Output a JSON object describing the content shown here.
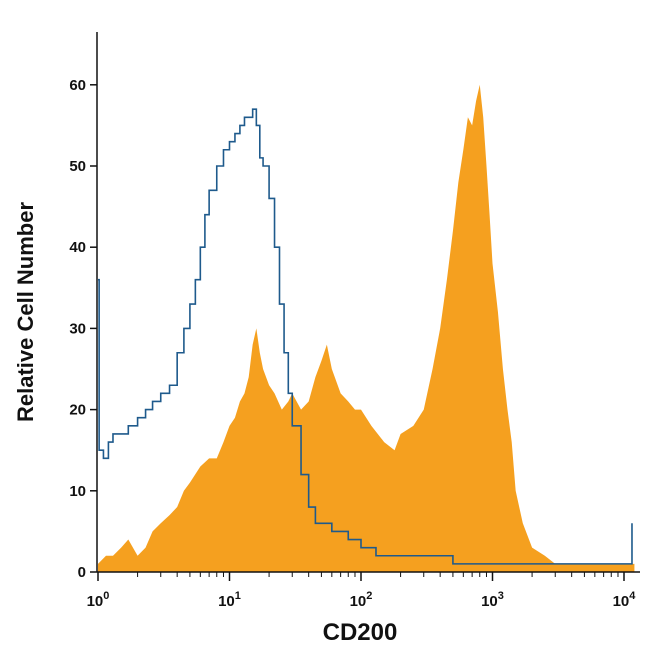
{
  "chart_data": {
    "type": "area",
    "xlabel": "CD200",
    "ylabel": "Relative Cell Number",
    "x_scale": "log",
    "xlim": [
      1,
      12000
    ],
    "ylim": [
      0,
      65
    ],
    "grid": false,
    "x_ticks": [
      {
        "value": 1,
        "base": "10",
        "exp": "0"
      },
      {
        "value": 10,
        "base": "10",
        "exp": "1"
      },
      {
        "value": 100,
        "base": "10",
        "exp": "2"
      },
      {
        "value": 1000,
        "base": "10",
        "exp": "3"
      },
      {
        "value": 10000,
        "base": "10",
        "exp": "4"
      }
    ],
    "y_ticks": [
      0,
      10,
      20,
      30,
      40,
      50,
      60
    ],
    "series": [
      {
        "style": "filled",
        "color": "#f5a01f",
        "points": [
          [
            1,
            1
          ],
          [
            1.15,
            2
          ],
          [
            1.3,
            2
          ],
          [
            1.5,
            3
          ],
          [
            1.7,
            4
          ],
          [
            2,
            2
          ],
          [
            2.3,
            3
          ],
          [
            2.6,
            5
          ],
          [
            3,
            6
          ],
          [
            3.5,
            7
          ],
          [
            4,
            8
          ],
          [
            4.5,
            10
          ],
          [
            5,
            11
          ],
          [
            6,
            13
          ],
          [
            7,
            14
          ],
          [
            8,
            14
          ],
          [
            9,
            16
          ],
          [
            10,
            18
          ],
          [
            11,
            19
          ],
          [
            12,
            21
          ],
          [
            13,
            22
          ],
          [
            14,
            24
          ],
          [
            15,
            28
          ],
          [
            16,
            30
          ],
          [
            17,
            27
          ],
          [
            18,
            25
          ],
          [
            20,
            23
          ],
          [
            22,
            22
          ],
          [
            25,
            20
          ],
          [
            28,
            21
          ],
          [
            30,
            22
          ],
          [
            35,
            20
          ],
          [
            40,
            21
          ],
          [
            45,
            24
          ],
          [
            50,
            26
          ],
          [
            55,
            28
          ],
          [
            60,
            25
          ],
          [
            70,
            22
          ],
          [
            80,
            21
          ],
          [
            90,
            20
          ],
          [
            100,
            20
          ],
          [
            120,
            18
          ],
          [
            150,
            16
          ],
          [
            180,
            15
          ],
          [
            200,
            17
          ],
          [
            250,
            18
          ],
          [
            300,
            20
          ],
          [
            350,
            25
          ],
          [
            400,
            30
          ],
          [
            450,
            36
          ],
          [
            500,
            42
          ],
          [
            550,
            48
          ],
          [
            600,
            52
          ],
          [
            650,
            56
          ],
          [
            700,
            55
          ],
          [
            750,
            58
          ],
          [
            800,
            60
          ],
          [
            850,
            56
          ],
          [
            900,
            50
          ],
          [
            950,
            44
          ],
          [
            1000,
            38
          ],
          [
            1100,
            32
          ],
          [
            1200,
            25
          ],
          [
            1300,
            20
          ],
          [
            1400,
            16
          ],
          [
            1500,
            10
          ],
          [
            1700,
            6
          ],
          [
            2000,
            3
          ],
          [
            2500,
            2
          ],
          [
            3000,
            1
          ],
          [
            4000,
            1
          ],
          [
            6000,
            1
          ],
          [
            8000,
            1
          ],
          [
            10000,
            1
          ],
          [
            12000,
            1
          ]
        ]
      },
      {
        "style": "line",
        "color": "#1e5a8c",
        "points": [
          [
            1,
            36
          ],
          [
            1.02,
            15
          ],
          [
            1.1,
            14
          ],
          [
            1.2,
            16
          ],
          [
            1.3,
            17
          ],
          [
            1.5,
            17
          ],
          [
            1.7,
            18
          ],
          [
            2,
            19
          ],
          [
            2.3,
            20
          ],
          [
            2.6,
            21
          ],
          [
            3,
            22
          ],
          [
            3.5,
            23
          ],
          [
            4,
            27
          ],
          [
            4.5,
            30
          ],
          [
            5,
            33
          ],
          [
            5.5,
            36
          ],
          [
            6,
            40
          ],
          [
            6.5,
            44
          ],
          [
            7,
            47
          ],
          [
            8,
            50
          ],
          [
            9,
            52
          ],
          [
            10,
            53
          ],
          [
            11,
            54
          ],
          [
            12,
            55
          ],
          [
            13,
            56
          ],
          [
            14,
            56
          ],
          [
            15,
            57
          ],
          [
            16,
            55
          ],
          [
            17,
            51
          ],
          [
            18,
            50
          ],
          [
            20,
            46
          ],
          [
            22,
            40
          ],
          [
            24,
            33
          ],
          [
            26,
            27
          ],
          [
            28,
            22
          ],
          [
            30,
            18
          ],
          [
            35,
            12
          ],
          [
            40,
            8
          ],
          [
            45,
            6
          ],
          [
            50,
            6
          ],
          [
            60,
            5
          ],
          [
            70,
            5
          ],
          [
            80,
            4
          ],
          [
            100,
            3
          ],
          [
            130,
            2
          ],
          [
            200,
            2
          ],
          [
            300,
            2
          ],
          [
            500,
            1
          ],
          [
            800,
            1
          ],
          [
            1000,
            1
          ],
          [
            2000,
            1
          ],
          [
            4000,
            1
          ],
          [
            8000,
            1
          ],
          [
            11000,
            1
          ],
          [
            11500,
            6
          ]
        ]
      }
    ]
  }
}
